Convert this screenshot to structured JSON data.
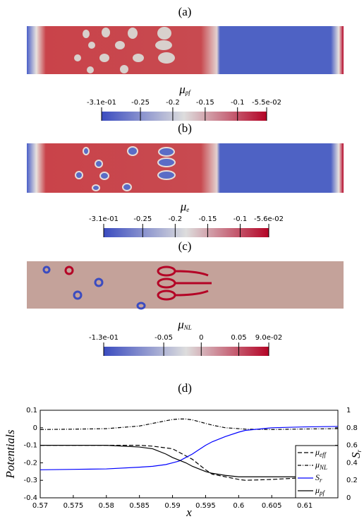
{
  "panels": [
    {
      "label": "(a)",
      "colorbar": {
        "symbol": "μ",
        "subscript": "pf",
        "ticks": [
          {
            "value": -0.31,
            "label": "-3.1e-01"
          },
          -0.25,
          -0.2,
          -0.15,
          -0.1,
          {
            "value": -0.055,
            "label": "-5.5e-02"
          }
        ]
      }
    },
    {
      "label": "(b)",
      "colorbar": {
        "symbol": "μ",
        "subscript": "e",
        "ticks": [
          {
            "value": -0.31,
            "label": "-3.1e-01"
          },
          -0.25,
          -0.2,
          -0.15,
          -0.1,
          {
            "value": -0.056,
            "label": "-5.6e-02"
          }
        ]
      }
    },
    {
      "label": "(c)",
      "colorbar": {
        "symbol": "μ",
        "subscript": "NL",
        "ticks": [
          {
            "value": -0.13,
            "label": "-1.3e-01"
          },
          -0.05,
          0,
          0.05,
          {
            "value": 0.09,
            "label": "9.0e-02"
          }
        ]
      }
    }
  ],
  "chart_data": {
    "type": "line",
    "panel_label": "(d)",
    "xlabel": "x",
    "ylabel": "Potentials",
    "y2label": {
      "name": "S",
      "subscript": "r"
    },
    "x": [
      0.57,
      0.575,
      0.58,
      0.585,
      0.587,
      0.589,
      0.59,
      0.591,
      0.592,
      0.593,
      0.594,
      0.595,
      0.596,
      0.598,
      0.6,
      0.601,
      0.605,
      0.61,
      0.615
    ],
    "series": [
      {
        "name": "μ",
        "subscript": "eff",
        "color": "#000000",
        "dash": "dashed",
        "values": [
          -0.1,
          -0.1,
          -0.1,
          -0.1,
          -0.105,
          -0.115,
          -0.12,
          -0.14,
          -0.16,
          -0.18,
          -0.21,
          -0.24,
          -0.265,
          -0.28,
          -0.295,
          -0.3,
          -0.295,
          -0.285,
          -0.28
        ]
      },
      {
        "name": "μ",
        "subscript": "NL",
        "color": "#000000",
        "dash": "dashdot",
        "values": [
          -0.01,
          -0.008,
          -0.005,
          0.01,
          0.025,
          0.04,
          0.047,
          0.05,
          0.05,
          0.045,
          0.035,
          0.025,
          0.015,
          0,
          -0.005,
          -0.008,
          -0.01,
          -0.007,
          -0.005
        ]
      },
      {
        "name": "S",
        "subscript": "r",
        "color": "#0000ff",
        "dash": "solid",
        "axis": "y2",
        "values": [
          0.32,
          0.325,
          0.33,
          0.35,
          0.36,
          0.38,
          0.4,
          0.42,
          0.46,
          0.5,
          0.55,
          0.6,
          0.64,
          0.7,
          0.75,
          0.77,
          0.8,
          0.81,
          0.815
        ]
      },
      {
        "name": "μ",
        "subscript": "pf",
        "color": "#000000",
        "dash": "solid",
        "values": [
          -0.1,
          -0.1,
          -0.1,
          -0.11,
          -0.12,
          -0.15,
          -0.17,
          -0.185,
          -0.2,
          -0.22,
          -0.235,
          -0.25,
          -0.26,
          -0.272,
          -0.28,
          -0.28,
          -0.28,
          -0.28,
          -0.28
        ]
      }
    ],
    "xlim": [
      0.57,
      0.615
    ],
    "xticks": [
      0.57,
      0.575,
      0.58,
      0.585,
      0.59,
      0.595,
      0.6,
      0.605,
      0.61
    ],
    "ylim": [
      -0.4,
      0.1
    ],
    "yticks": [
      -0.4,
      -0.3,
      -0.2,
      -0.1,
      0,
      0.1
    ],
    "y2lim": [
      0,
      1
    ],
    "y2ticks": [
      0,
      0.2,
      0.4,
      0.6,
      0.8,
      1
    ],
    "legend": "lower right"
  }
}
